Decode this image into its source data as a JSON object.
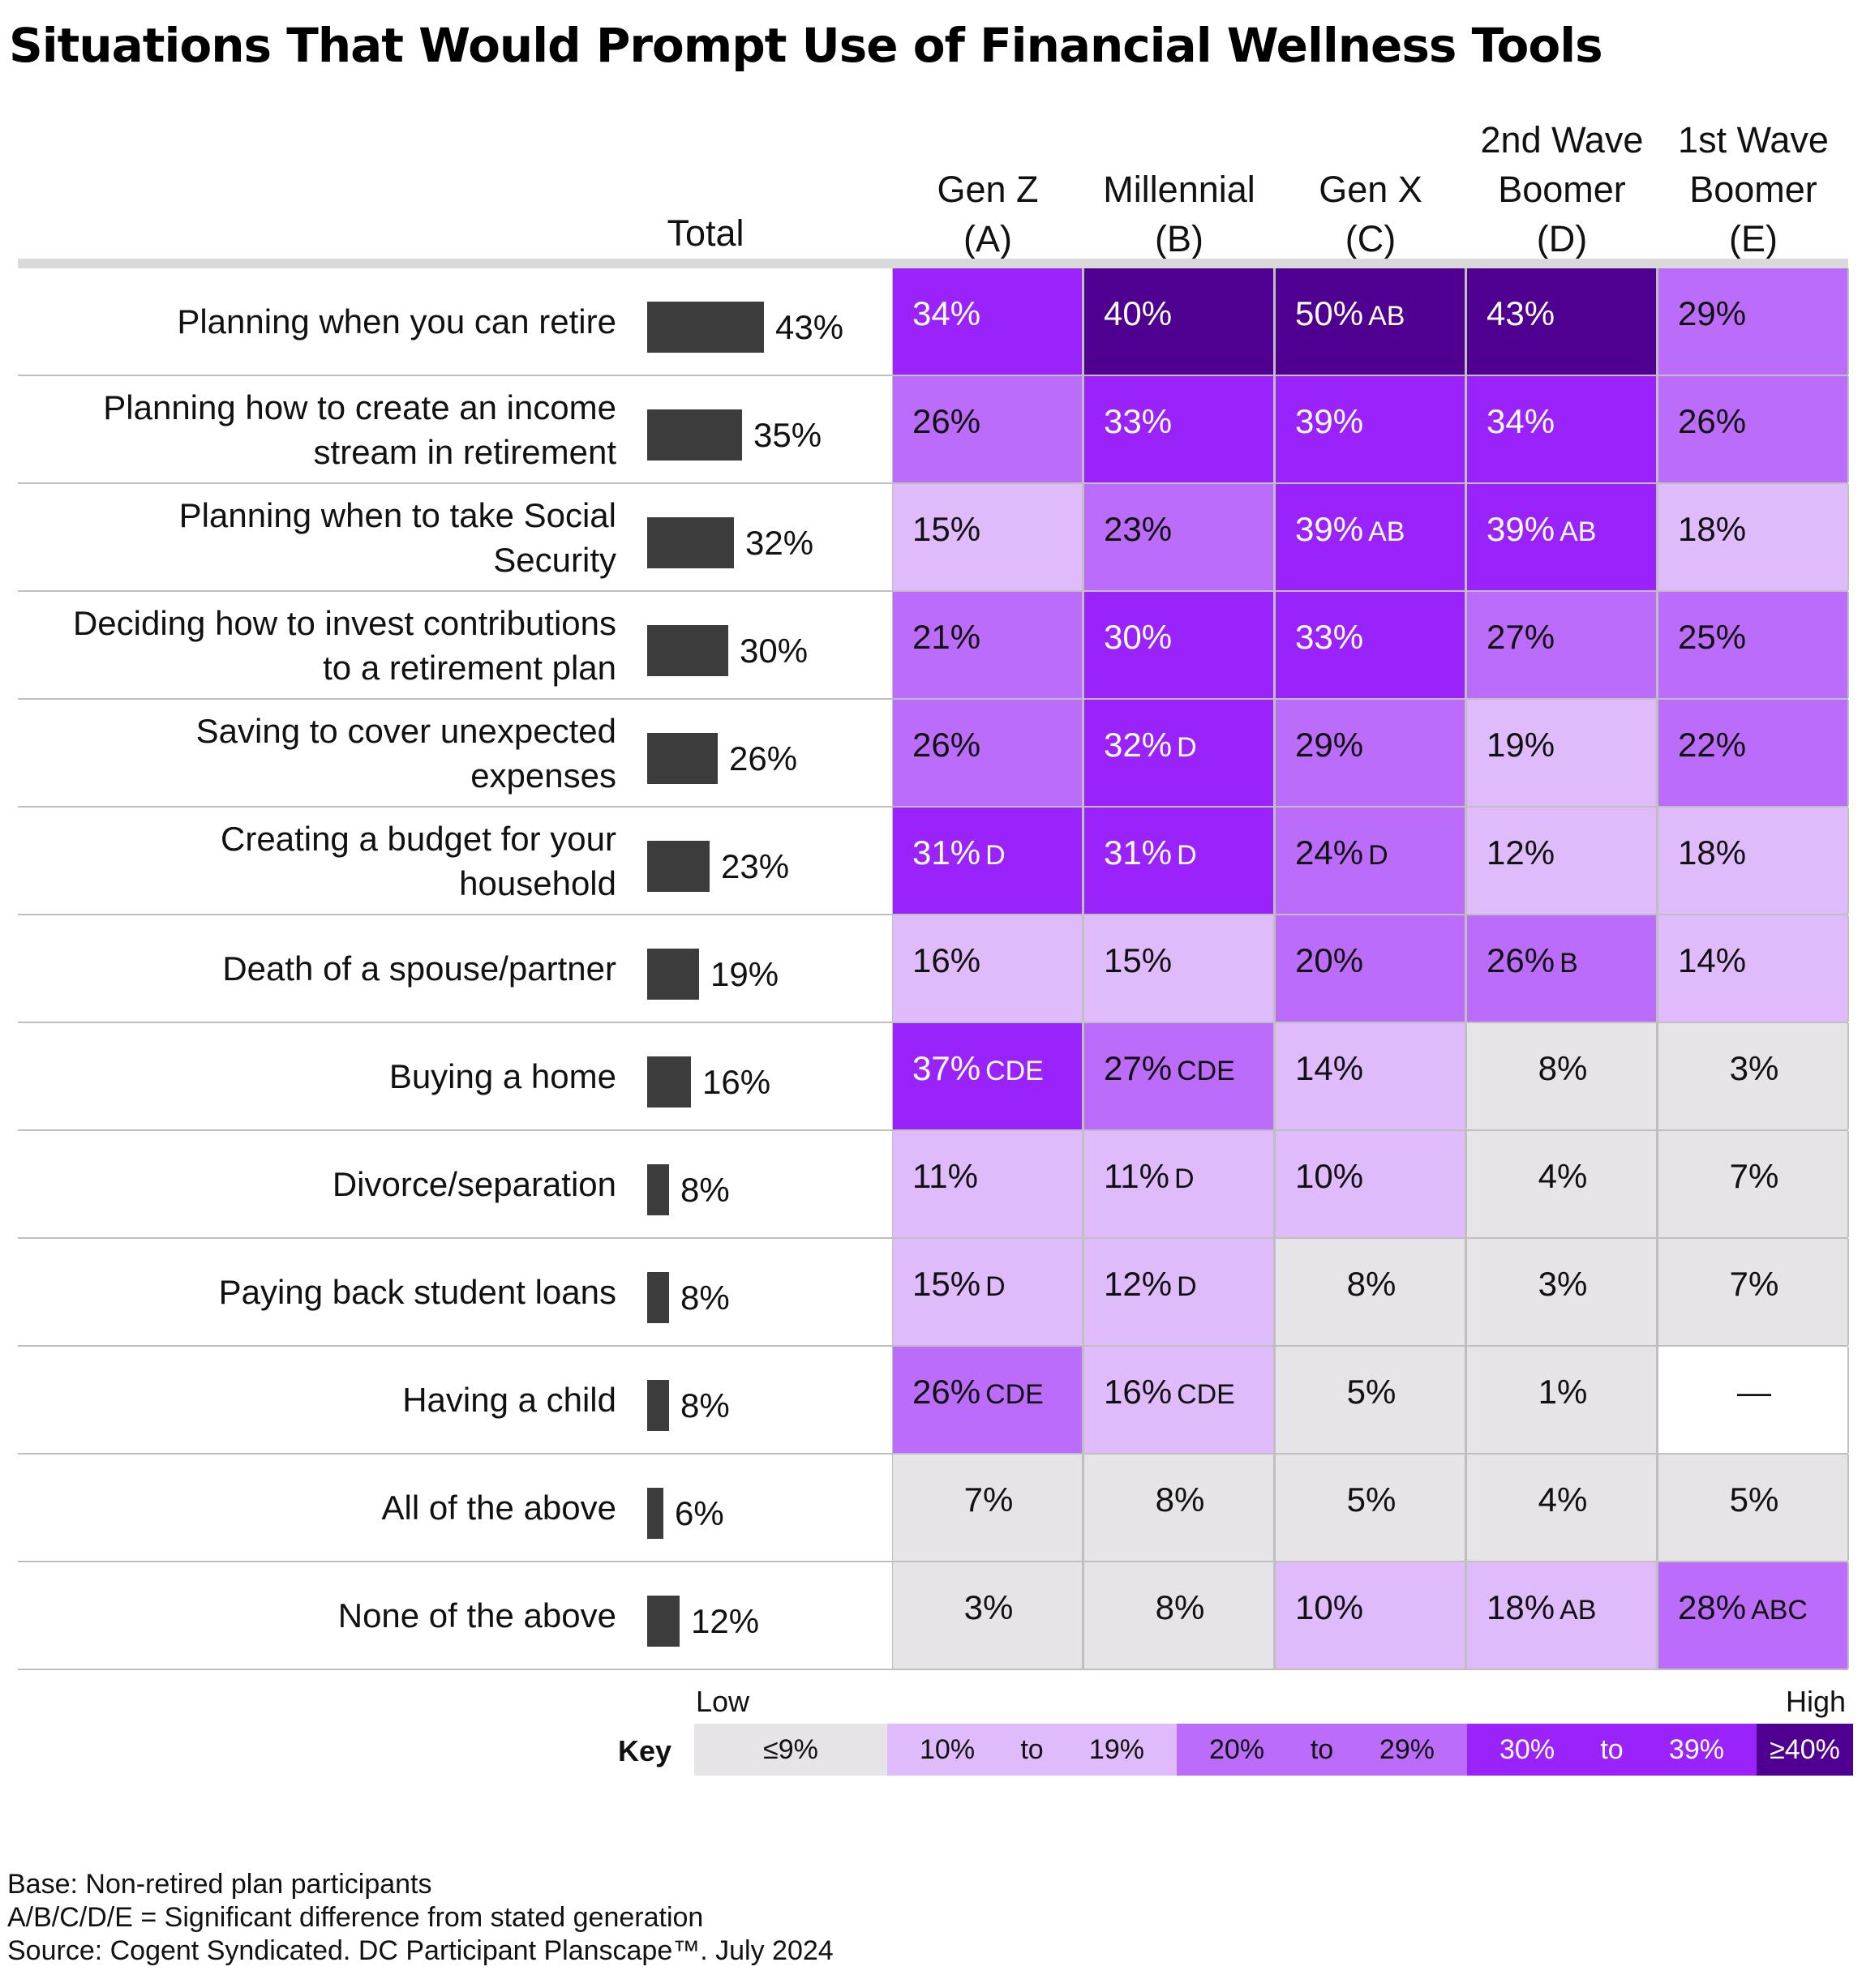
{
  "title": "Situations That Would Prompt Use of Financial Wellness Tools",
  "headers": {
    "total": "Total",
    "columns": [
      {
        "line1": "",
        "line2": "Gen Z",
        "line3": "(A)"
      },
      {
        "line1": "",
        "line2": "Millennial",
        "line3": "(B)"
      },
      {
        "line1": "",
        "line2": "Gen X",
        "line3": "(C)"
      },
      {
        "line1": "2nd Wave",
        "line2": "Boomer",
        "line3": "(D)"
      },
      {
        "line1": "1st Wave",
        "line2": "Boomer",
        "line3": "(E)"
      }
    ]
  },
  "colors": {
    "le9": "#e6e4e6",
    "r10_19": "#dfbbfb",
    "r20_29": "#bc6cfb",
    "r30_39": "#9a22fb",
    "ge40": "#500090",
    "none": "#ffffff",
    "bar": "#3c3c3c"
  },
  "chart_data": {
    "type": "table",
    "rows": [
      {
        "label": "Planning when you can retire",
        "total": 43,
        "total_text": "43%",
        "cells": [
          {
            "v": 34,
            "t": "34%",
            "s": ""
          },
          {
            "v": 40,
            "t": "40%",
            "s": ""
          },
          {
            "v": 50,
            "t": "50%",
            "s": "AB"
          },
          {
            "v": 43,
            "t": "43%",
            "s": ""
          },
          {
            "v": 29,
            "t": "29%",
            "s": ""
          }
        ]
      },
      {
        "label": "Planning how to create an income\nstream in retirement",
        "total": 35,
        "total_text": "35%",
        "cells": [
          {
            "v": 26,
            "t": "26%",
            "s": ""
          },
          {
            "v": 33,
            "t": "33%",
            "s": ""
          },
          {
            "v": 39,
            "t": "39%",
            "s": ""
          },
          {
            "v": 34,
            "t": "34%",
            "s": ""
          },
          {
            "v": 26,
            "t": "26%",
            "s": ""
          }
        ]
      },
      {
        "label": "Planning when to take Social\nSecurity",
        "total": 32,
        "total_text": "32%",
        "cells": [
          {
            "v": 15,
            "t": "15%",
            "s": ""
          },
          {
            "v": 23,
            "t": "23%",
            "s": ""
          },
          {
            "v": 39,
            "t": "39%",
            "s": "AB"
          },
          {
            "v": 39,
            "t": "39%",
            "s": "AB"
          },
          {
            "v": 18,
            "t": "18%",
            "s": ""
          }
        ]
      },
      {
        "label": "Deciding how to invest contributions\nto a retirement plan",
        "total": 30,
        "total_text": "30%",
        "cells": [
          {
            "v": 21,
            "t": "21%",
            "s": ""
          },
          {
            "v": 30,
            "t": "30%",
            "s": ""
          },
          {
            "v": 33,
            "t": "33%",
            "s": ""
          },
          {
            "v": 27,
            "t": "27%",
            "s": ""
          },
          {
            "v": 25,
            "t": "25%",
            "s": ""
          }
        ]
      },
      {
        "label": "Saving to cover unexpected\nexpenses",
        "total": 26,
        "total_text": "26%",
        "cells": [
          {
            "v": 26,
            "t": "26%",
            "s": ""
          },
          {
            "v": 32,
            "t": "32%",
            "s": "D"
          },
          {
            "v": 29,
            "t": "29%",
            "s": ""
          },
          {
            "v": 19,
            "t": "19%",
            "s": ""
          },
          {
            "v": 22,
            "t": "22%",
            "s": ""
          }
        ]
      },
      {
        "label": "Creating a budget for your\nhousehold",
        "total": 23,
        "total_text": "23%",
        "cells": [
          {
            "v": 31,
            "t": "31%",
            "s": "D"
          },
          {
            "v": 31,
            "t": "31%",
            "s": "D"
          },
          {
            "v": 24,
            "t": "24%",
            "s": "D"
          },
          {
            "v": 12,
            "t": "12%",
            "s": ""
          },
          {
            "v": 18,
            "t": "18%",
            "s": ""
          }
        ]
      },
      {
        "label": "Death of a spouse/partner",
        "total": 19,
        "total_text": "19%",
        "cells": [
          {
            "v": 16,
            "t": "16%",
            "s": ""
          },
          {
            "v": 15,
            "t": "15%",
            "s": ""
          },
          {
            "v": 20,
            "t": "20%",
            "s": ""
          },
          {
            "v": 26,
            "t": "26%",
            "s": "B"
          },
          {
            "v": 14,
            "t": "14%",
            "s": ""
          }
        ]
      },
      {
        "label": "Buying a home",
        "total": 16,
        "total_text": "16%",
        "cells": [
          {
            "v": 37,
            "t": "37%",
            "s": "CDE"
          },
          {
            "v": 27,
            "t": "27%",
            "s": "CDE"
          },
          {
            "v": 14,
            "t": "14%",
            "s": ""
          },
          {
            "v": 8,
            "t": "8%",
            "s": ""
          },
          {
            "v": 3,
            "t": "3%",
            "s": ""
          }
        ]
      },
      {
        "label": "Divorce/separation",
        "total": 8,
        "total_text": "8%",
        "cells": [
          {
            "v": 11,
            "t": "11%",
            "s": ""
          },
          {
            "v": 11,
            "t": "11%",
            "s": "D"
          },
          {
            "v": 10,
            "t": "10%",
            "s": ""
          },
          {
            "v": 4,
            "t": "4%",
            "s": ""
          },
          {
            "v": 7,
            "t": "7%",
            "s": ""
          }
        ]
      },
      {
        "label": "Paying back student loans",
        "total": 8,
        "total_text": "8%",
        "cells": [
          {
            "v": 15,
            "t": "15%",
            "s": "D"
          },
          {
            "v": 12,
            "t": "12%",
            "s": "D"
          },
          {
            "v": 8,
            "t": "8%",
            "s": ""
          },
          {
            "v": 3,
            "t": "3%",
            "s": ""
          },
          {
            "v": 7,
            "t": "7%",
            "s": ""
          }
        ]
      },
      {
        "label": "Having a child",
        "total": 8,
        "total_text": "8%",
        "cells": [
          {
            "v": 26,
            "t": "26%",
            "s": "CDE"
          },
          {
            "v": 16,
            "t": "16%",
            "s": "CDE"
          },
          {
            "v": 5,
            "t": "5%",
            "s": ""
          },
          {
            "v": 1,
            "t": "1%",
            "s": ""
          },
          {
            "v": null,
            "t": "—",
            "s": ""
          }
        ]
      },
      {
        "label": "All of the above",
        "total": 6,
        "total_text": "6%",
        "cells": [
          {
            "v": 7,
            "t": "7%",
            "s": ""
          },
          {
            "v": 8,
            "t": "8%",
            "s": ""
          },
          {
            "v": 5,
            "t": "5%",
            "s": ""
          },
          {
            "v": 4,
            "t": "4%",
            "s": ""
          },
          {
            "v": 5,
            "t": "5%",
            "s": ""
          }
        ]
      },
      {
        "label": "None of the above",
        "total": 12,
        "total_text": "12%",
        "cells": [
          {
            "v": 3,
            "t": "3%",
            "s": ""
          },
          {
            "v": 8,
            "t": "8%",
            "s": ""
          },
          {
            "v": 10,
            "t": "10%",
            "s": ""
          },
          {
            "v": 18,
            "t": "18%",
            "s": "AB"
          },
          {
            "v": 28,
            "t": "28%",
            "s": "ABC"
          }
        ]
      }
    ]
  },
  "key": {
    "label": "Key",
    "low": "Low",
    "high": "High",
    "segments": [
      {
        "color": "le9",
        "a": "≤9%",
        "b": "",
        "c": ""
      },
      {
        "color": "r10_19",
        "a": "10%",
        "b": "to",
        "c": "19%"
      },
      {
        "color": "r20_29",
        "a": "20%",
        "b": "to",
        "c": "29%"
      },
      {
        "color": "r30_39",
        "a": "30%",
        "b": "to",
        "c": "39%"
      },
      {
        "color": "ge40",
        "a": "≥40%",
        "b": "",
        "c": ""
      }
    ]
  },
  "footnotes": {
    "base": "Base: Non-retired plan participants",
    "sig": "A/B/C/D/E = Significant difference from stated generation",
    "source": "Source: Cogent Syndicated. DC Participant Planscape™. July 2024"
  }
}
